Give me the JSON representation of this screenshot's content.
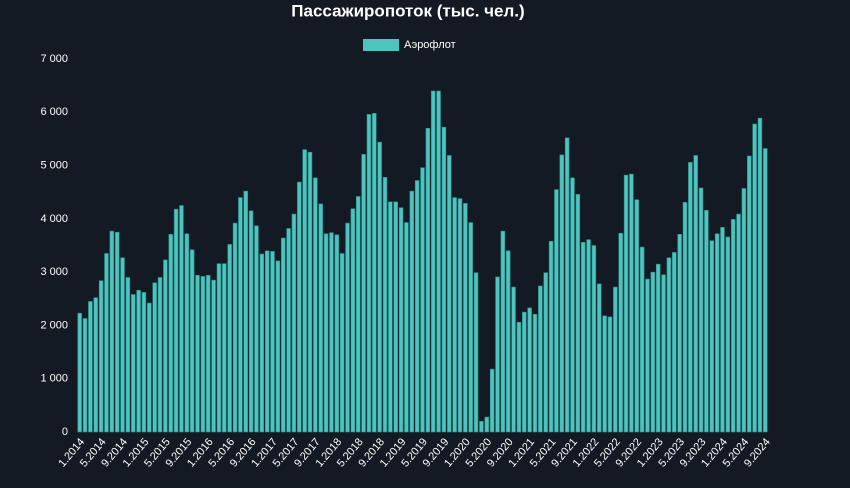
{
  "chart_data": {
    "type": "bar",
    "title": "Пассажиропоток (тыс. чел.)",
    "series": [
      {
        "name": "Аэрофлот",
        "color": "#4fc4bf",
        "values": [
          2230,
          2130,
          2450,
          2520,
          2840,
          3350,
          3770,
          3750,
          3270,
          2900,
          2580,
          2660,
          2620,
          2420,
          2800,
          2900,
          3230,
          3710,
          4180,
          4250,
          3720,
          3420,
          2940,
          2920,
          2940,
          2850,
          3160,
          3160,
          3520,
          3920,
          4400,
          4520,
          4150,
          3870,
          3340,
          3400,
          3390,
          3210,
          3640,
          3820,
          4090,
          4690,
          5300,
          5250,
          4770,
          4280,
          3720,
          3740,
          3700,
          3350,
          3920,
          4190,
          4420,
          5210,
          5960,
          5980,
          5440,
          4780,
          4320,
          4320,
          4210,
          3930,
          4520,
          4720,
          4960,
          5700,
          6400,
          6400,
          5720,
          5190,
          4400,
          4380,
          4290,
          3930,
          2990,
          200,
          280,
          1180,
          2910,
          3770,
          3400,
          2720,
          2060,
          2250,
          2330,
          2210,
          2740,
          2990,
          3580,
          4550,
          5200,
          5520,
          4770,
          4460,
          3560,
          3610,
          3500,
          2780,
          2180,
          2160,
          2720,
          3730,
          4820,
          4840,
          4360,
          3470,
          2870,
          3000,
          3150,
          2950,
          3270,
          3370,
          3710,
          4310,
          5060,
          5190,
          4580,
          4160,
          3590,
          3720,
          3840,
          3660,
          3990,
          4090,
          4570,
          5180,
          5780,
          5890,
          5320
        ]
      }
    ],
    "categories": [
      "1.2014",
      null,
      null,
      null,
      "5.2014",
      null,
      null,
      null,
      "9.2014",
      null,
      null,
      null,
      "1.2015",
      null,
      null,
      null,
      "5.2015",
      null,
      null,
      null,
      "9.2015",
      null,
      null,
      null,
      "1.2016",
      null,
      null,
      null,
      "5.2016",
      null,
      null,
      null,
      "9.2016",
      null,
      null,
      null,
      "1.2017",
      null,
      null,
      null,
      "5.2017",
      null,
      null,
      null,
      "9.2017",
      null,
      null,
      null,
      "1.2018",
      null,
      null,
      null,
      "5.2018",
      null,
      null,
      null,
      "9.2018",
      null,
      null,
      null,
      "1.2019",
      null,
      null,
      null,
      "5.2019",
      null,
      null,
      null,
      "9.2019",
      null,
      null,
      null,
      "1.2020",
      null,
      null,
      null,
      "5.2020",
      null,
      null,
      null,
      "9.2020",
      null,
      null,
      null,
      "1.2021",
      null,
      null,
      null,
      "5.2021",
      null,
      null,
      null,
      "9.2021",
      null,
      null,
      null,
      "1.2022",
      null,
      null,
      null,
      "5.2022",
      null,
      null,
      null,
      "9.2022",
      null,
      null,
      null,
      "1.2023",
      null,
      null,
      null,
      "5.2023",
      null,
      null,
      null,
      "9.2023",
      null,
      null,
      null,
      "1.2024",
      null,
      null,
      null,
      "5.2024",
      null,
      null,
      null,
      "9.2024"
    ],
    "ylim": [
      0,
      7000
    ],
    "yticks": [
      0,
      {
        "value": 1000,
        "label": "1 000"
      },
      {
        "value": 2000,
        "label": "2 000"
      },
      {
        "value": 3000,
        "label": "3 000"
      },
      {
        "value": 4000,
        "label": "4 000"
      },
      {
        "value": 5000,
        "label": "5 000"
      },
      {
        "value": 6000,
        "label": "6 000"
      },
      {
        "value": 7000,
        "label": "7 000"
      }
    ],
    "legend": "top"
  }
}
